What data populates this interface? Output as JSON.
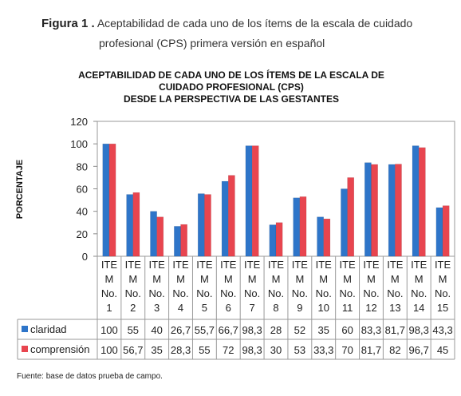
{
  "caption": {
    "label": "Figura 1 .",
    "text_line1": "Aceptabilidad de cada uno de los ítems de la escala de cuidado",
    "text_line2": "profesional (CPS) primera versión en español"
  },
  "chart_data": {
    "type": "bar",
    "title_lines": [
      "ACEPTABILIDAD DE CADA UNO DE LOS ÍTEMS DE LA ESCALA DE",
      "CUIDADO PROFESIONAL (CPS)",
      "DESDE LA PERSPECTIVA DE LAS GESTANTES"
    ],
    "ylabel": "PORCENTAJE",
    "xlabel": "",
    "ylim": [
      0,
      120
    ],
    "yticks": [
      0,
      20,
      40,
      60,
      80,
      100,
      120
    ],
    "categories": [
      [
        "ITE",
        "M",
        "No.",
        "1"
      ],
      [
        "ITE",
        "M",
        "No.",
        "2"
      ],
      [
        "ITE",
        "M",
        "No.",
        "3"
      ],
      [
        "ITE",
        "M",
        "No.",
        "4"
      ],
      [
        "ITE",
        "M",
        "No.",
        "5"
      ],
      [
        "ITE",
        "M",
        "No.",
        "6"
      ],
      [
        "ITE",
        "M",
        "No.",
        "7"
      ],
      [
        "ITE",
        "M",
        "No.",
        "8"
      ],
      [
        "ITE",
        "M",
        "No.",
        "9"
      ],
      [
        "ITE",
        "M",
        "No.",
        "10"
      ],
      [
        "ITE",
        "M",
        "No.",
        "11"
      ],
      [
        "ITE",
        "M",
        "No.",
        "12"
      ],
      [
        "ITE",
        "M",
        "No.",
        "13"
      ],
      [
        "ITE",
        "M",
        "No.",
        "14"
      ],
      [
        "ITE",
        "M",
        "No.",
        "15"
      ]
    ],
    "series": [
      {
        "name": "claridad",
        "color": "#2e75c9",
        "values": [
          100,
          55,
          40,
          26.7,
          55.7,
          66.7,
          98.3,
          28,
          52,
          35,
          60,
          83.3,
          81.7,
          98.3,
          43.3
        ],
        "labels": [
          "100",
          "55",
          "40",
          "26,7",
          "55,7",
          "66,7",
          "98,3",
          "28",
          "52",
          "35",
          "60",
          "83,3",
          "81,7",
          "98,3",
          "43,3"
        ]
      },
      {
        "name": "comprensión",
        "color": "#e8454f",
        "values": [
          100,
          56.7,
          35,
          28.3,
          55,
          72,
          98.3,
          30,
          53,
          33.3,
          70,
          81.7,
          82,
          96.7,
          45
        ],
        "labels": [
          "100",
          "56,7",
          "35",
          "28,3",
          "55",
          "72",
          "98,3",
          "30",
          "53",
          "33,3",
          "70",
          "81,7",
          "82",
          "96,7",
          "45"
        ]
      }
    ],
    "grid": false,
    "legend": "data table below chart"
  },
  "source_note": "Fuente: base de datos prueba de campo."
}
